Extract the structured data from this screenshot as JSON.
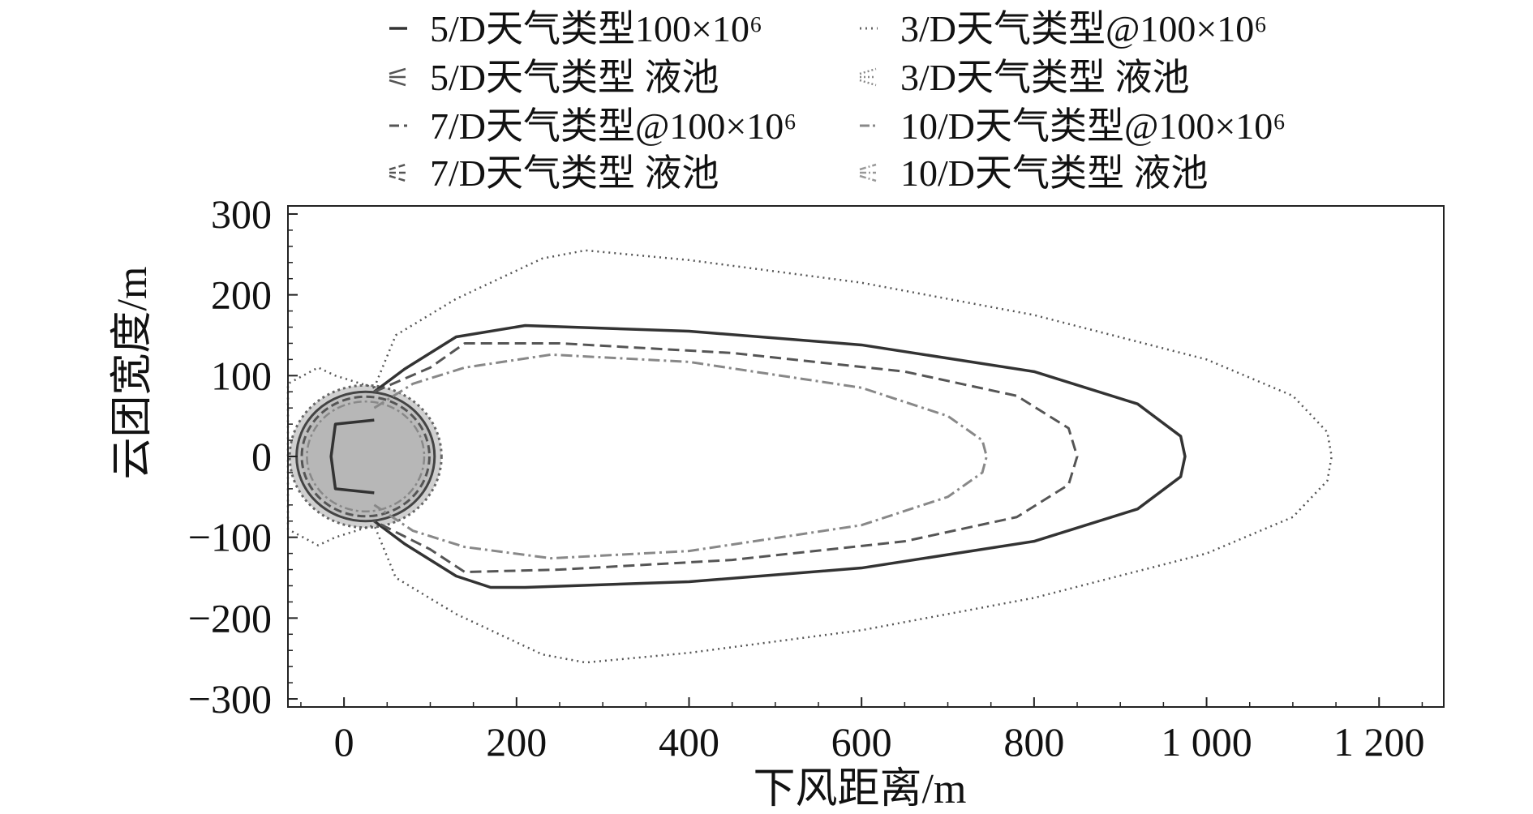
{
  "chart_data": {
    "type": "line",
    "xlabel": "下风距离/m",
    "ylabel": "云团宽度/m",
    "xlim": [
      -65,
      1275
    ],
    "ylim": [
      -310,
      310
    ],
    "x_ticks": [
      0,
      200,
      400,
      600,
      800,
      1000,
      1200
    ],
    "x_tick_labels": [
      "0",
      "200",
      "400",
      "600",
      "800",
      "1 000",
      "1 200"
    ],
    "y_ticks": [
      300,
      200,
      100,
      0,
      -100,
      -200,
      -300
    ],
    "y_tick_labels": [
      "300",
      "200",
      "100",
      "0",
      "−100",
      "−200",
      "−300"
    ],
    "grid": false,
    "legend": "top, two columns",
    "legend_entries": [
      {
        "id": "s5_cloud",
        "text": "5/D天气类型100×10⁶"
      },
      {
        "id": "s3_cloud",
        "text": "3/D天气类型@100×10⁶"
      },
      {
        "id": "s5_pool",
        "text": "5/D天气类型 液池"
      },
      {
        "id": "s3_pool",
        "text": "3/D天气类型 液池"
      },
      {
        "id": "s7_cloud",
        "text": "7/D天气类型@100×10⁶"
      },
      {
        "id": "s10_cloud",
        "text": "10/D天气类型@100×10⁶"
      },
      {
        "id": "s7_pool",
        "text": "7/D天气类型 液池"
      },
      {
        "id": "s10_pool",
        "text": "10/D天气类型 液池"
      }
    ],
    "series": [
      {
        "id": "s3_cloud",
        "name": "3/D天气类型@100×10⁶",
        "color": "#555555",
        "dash": "2,5",
        "width": 2.5,
        "points": [
          [
            35,
            85
          ],
          [
            -10,
            100
          ],
          [
            -30,
            110
          ],
          [
            -65,
            90
          ],
          [
            -65,
            -90
          ],
          [
            -30,
            -110
          ],
          [
            -10,
            -100
          ],
          [
            35,
            -85
          ],
          [
            60,
            150
          ],
          [
            130,
            195
          ],
          [
            230,
            245
          ],
          [
            280,
            255
          ],
          [
            400,
            243
          ],
          [
            600,
            215
          ],
          [
            800,
            175
          ],
          [
            1000,
            120
          ],
          [
            1100,
            75
          ],
          [
            1140,
            30
          ],
          [
            1145,
            0
          ],
          [
            1140,
            -30
          ],
          [
            1100,
            -75
          ],
          [
            1000,
            -120
          ],
          [
            800,
            -175
          ],
          [
            600,
            -215
          ],
          [
            400,
            -243
          ],
          [
            280,
            -255
          ],
          [
            230,
            -245
          ],
          [
            130,
            -195
          ],
          [
            60,
            -150
          ]
        ]
      },
      {
        "id": "s5_cloud",
        "name": "5/D天气类型100×10⁶",
        "color": "#333333",
        "dash": "",
        "width": 3.5,
        "points": [
          [
            35,
            45
          ],
          [
            -10,
            40
          ],
          [
            -15,
            0
          ],
          [
            -10,
            -40
          ],
          [
            35,
            -45
          ]
        ]
      },
      {
        "id": "s7_cloud",
        "name": "7/D天气类型@100×10⁶",
        "color": "#555555",
        "dash": "14,7",
        "width": 3,
        "points": [
          [
            35,
            80
          ],
          [
            100,
            110
          ],
          [
            140,
            140
          ],
          [
            250,
            140
          ],
          [
            450,
            128
          ],
          [
            650,
            105
          ],
          [
            780,
            75
          ],
          [
            840,
            35
          ],
          [
            850,
            0
          ],
          [
            840,
            -35
          ],
          [
            780,
            -75
          ],
          [
            650,
            -105
          ],
          [
            450,
            -128
          ],
          [
            250,
            -140
          ],
          [
            140,
            -143
          ],
          [
            100,
            -115
          ],
          [
            35,
            -80
          ]
        ]
      },
      {
        "id": "s10_cloud",
        "name": "10/D天气类型@100×10⁶",
        "color": "#888888",
        "dash": "14,5,3,5",
        "width": 3,
        "points": [
          [
            35,
            60
          ],
          [
            80,
            90
          ],
          [
            140,
            110
          ],
          [
            240,
            126
          ],
          [
            400,
            117
          ],
          [
            600,
            85
          ],
          [
            700,
            50
          ],
          [
            740,
            20
          ],
          [
            745,
            0
          ],
          [
            740,
            -20
          ],
          [
            700,
            -50
          ],
          [
            600,
            -85
          ],
          [
            400,
            -117
          ],
          [
            240,
            -126
          ],
          [
            140,
            -112
          ],
          [
            80,
            -92
          ],
          [
            35,
            -60
          ]
        ]
      }
    ],
    "pools": [
      {
        "id": "s5_pool",
        "name": "5/D天气类型 液池",
        "center": [
          25,
          0
        ],
        "rx": 80,
        "ry": 80
      },
      {
        "id": "s3_pool",
        "name": "3/D天气类型 液池",
        "center": [
          25,
          0
        ],
        "rx": 88,
        "ry": 88
      },
      {
        "id": "s7_pool",
        "name": "7/D天气类型 液池",
        "center": [
          25,
          0
        ],
        "rx": 74,
        "ry": 74
      },
      {
        "id": "s10_pool",
        "name": "10/D天气类型 液池",
        "center": [
          25,
          0
        ],
        "rx": 68,
        "ry": 68
      }
    ],
    "pool_fill": "#b4b4b4"
  }
}
